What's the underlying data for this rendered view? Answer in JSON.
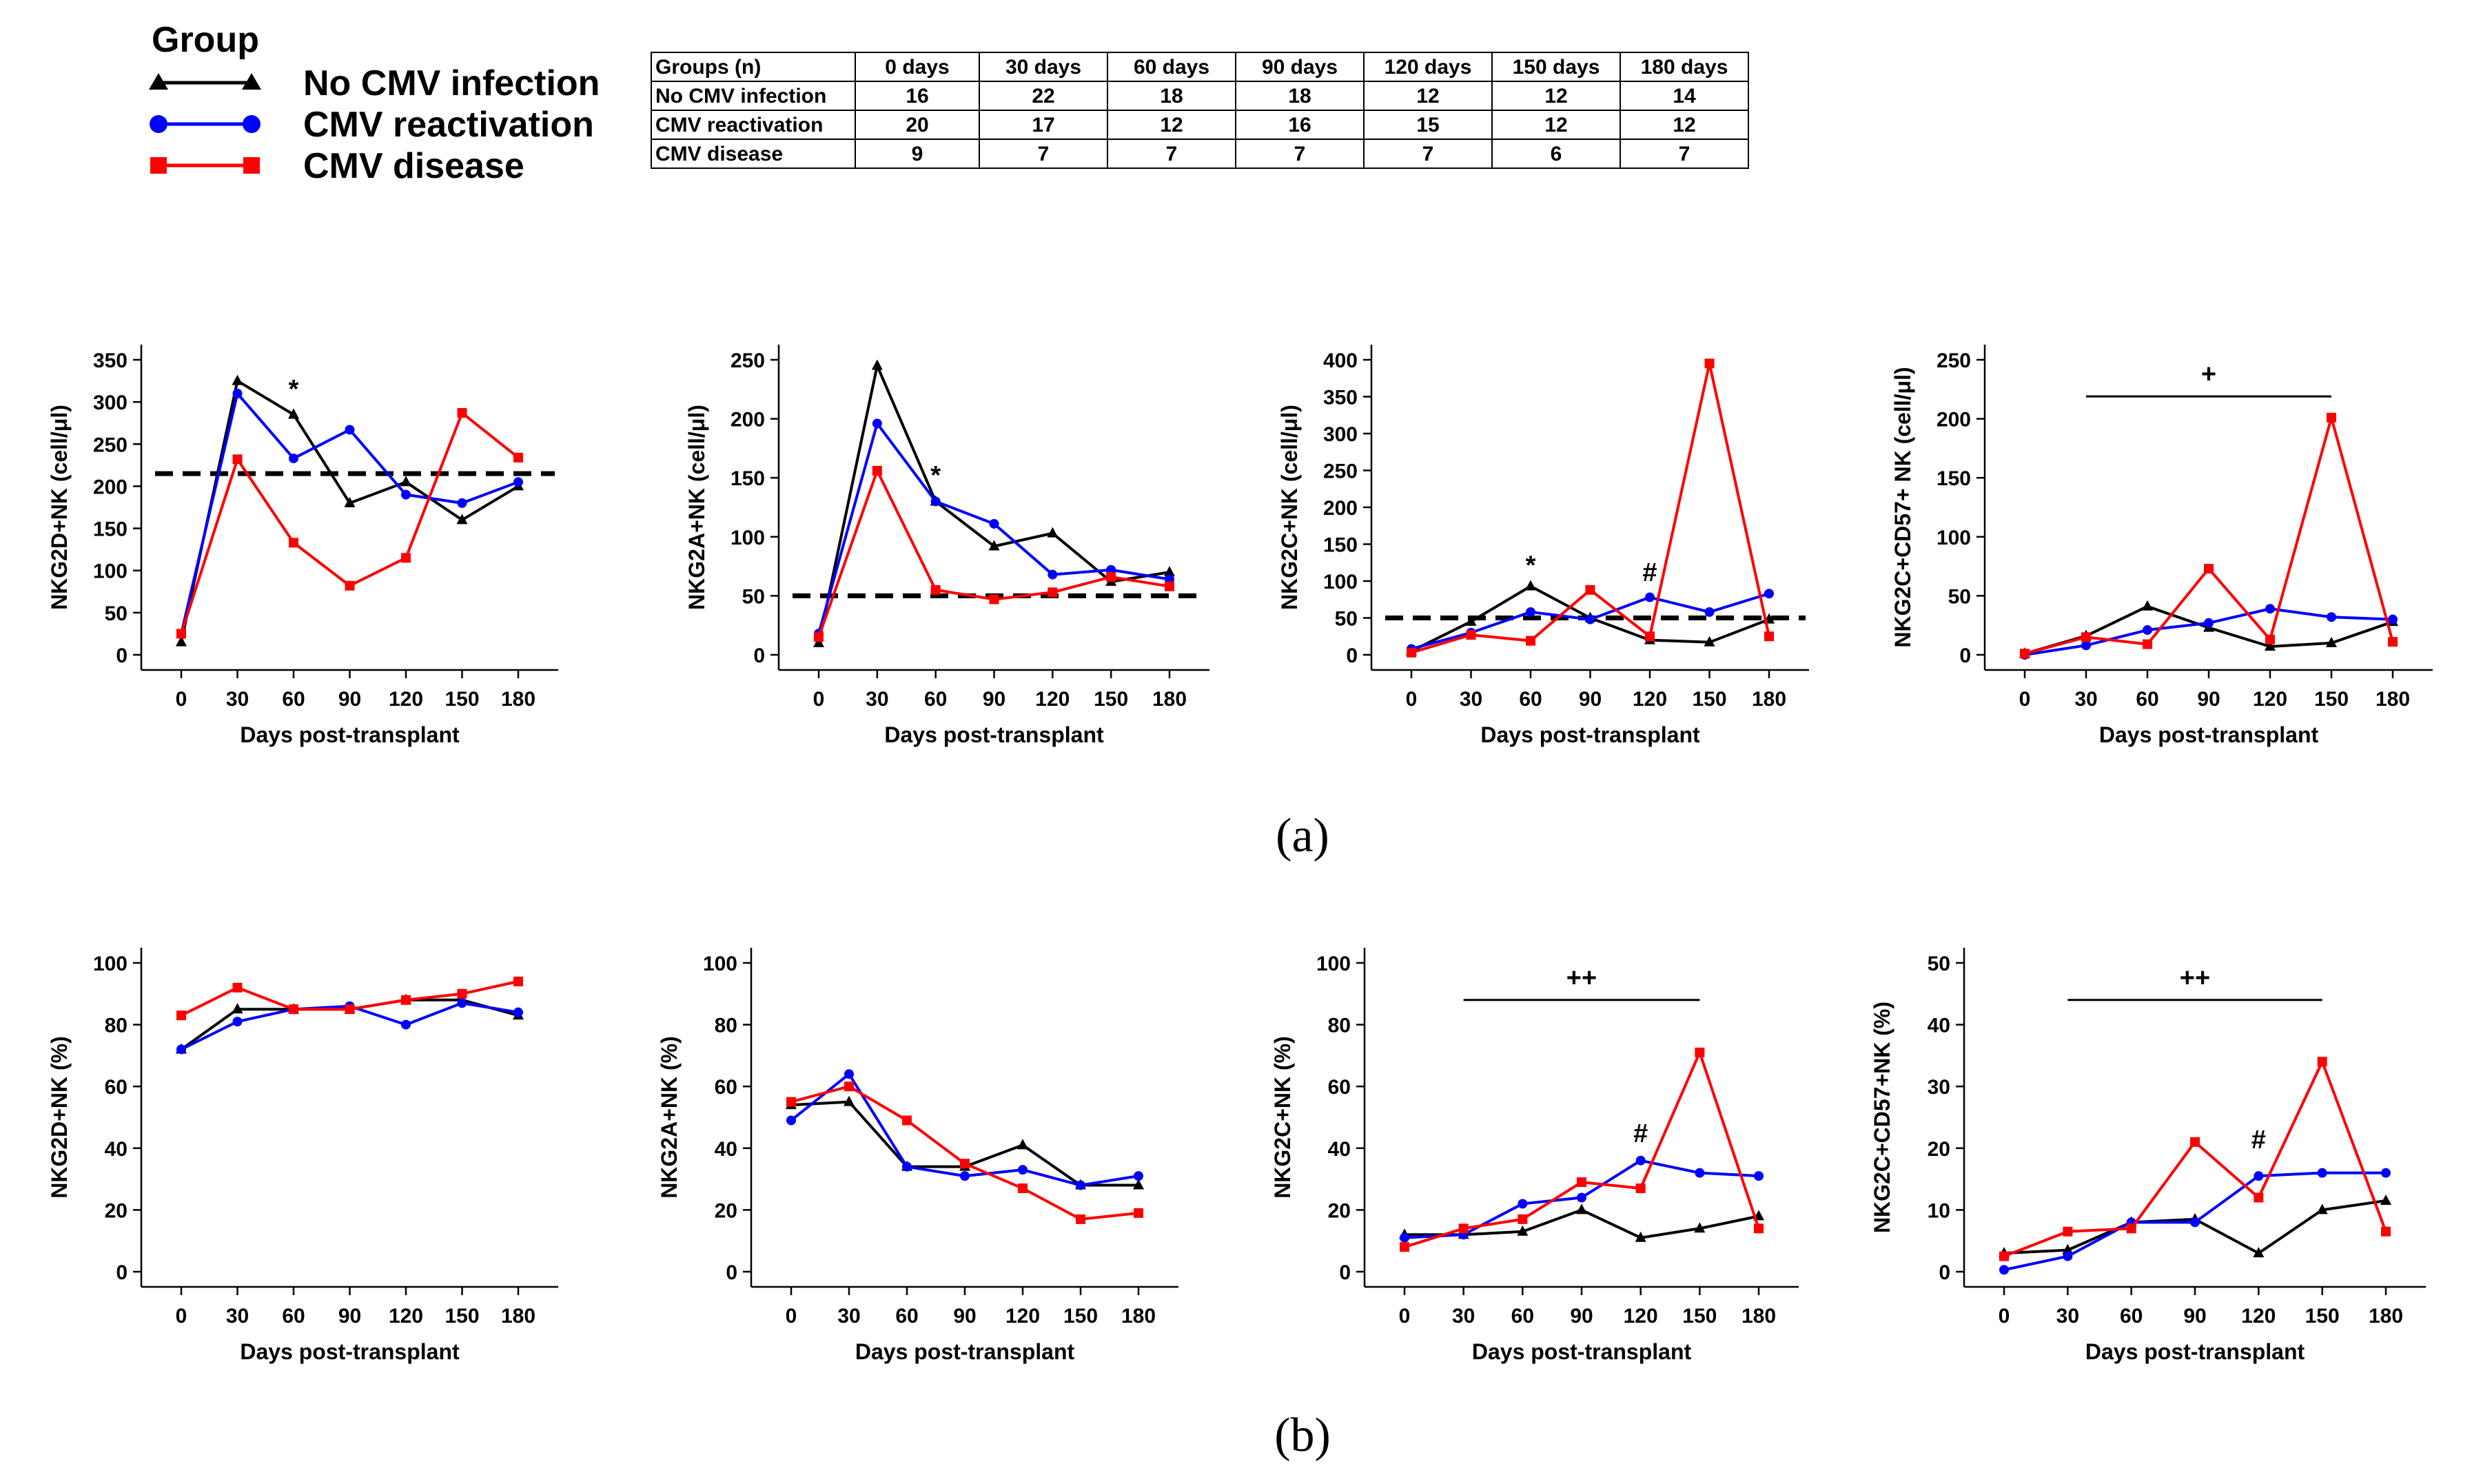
{
  "legend": {
    "title": "Group",
    "items": [
      {
        "label": "No CMV infection",
        "color": "#000000",
        "marker": "triangle"
      },
      {
        "label": "CMV reactivation",
        "color": "#0000ff",
        "marker": "circle"
      },
      {
        "label": "CMV disease",
        "color": "#ff0000",
        "marker": "square"
      }
    ]
  },
  "table": {
    "headers": [
      "Groups (n)",
      "0 days",
      "30 days",
      "60 days",
      "90 days",
      "120 days",
      "150 days",
      "180 days"
    ],
    "rows": [
      [
        "No CMV infection",
        "16",
        "22",
        "18",
        "18",
        "12",
        "12",
        "14"
      ],
      [
        "CMV reactivation",
        "20",
        "17",
        "12",
        "16",
        "15",
        "12",
        "12"
      ],
      [
        "CMV disease",
        "9",
        "7",
        "7",
        "7",
        "7",
        "6",
        "7"
      ]
    ]
  },
  "panel_labels": {
    "a": "(a)",
    "b": "(b)"
  },
  "chart_data": [
    {
      "type": "line",
      "id": "a1",
      "ylabel": "NKG2D+NK (cell/μl)",
      "xlabel": "Days post-transplant",
      "x": [
        0,
        30,
        60,
        90,
        120,
        150,
        180
      ],
      "xticks": [
        0,
        30,
        60,
        90,
        120,
        150,
        180
      ],
      "ylim": [
        0,
        350
      ],
      "yticks": [
        0,
        50,
        100,
        150,
        200,
        250,
        300,
        350
      ],
      "threshold": 215,
      "series": [
        {
          "name": "No CMV infection",
          "values": [
            15,
            325,
            285,
            180,
            205,
            160,
            200
          ]
        },
        {
          "name": "CMV reactivation",
          "values": [
            25,
            310,
            233,
            267,
            190,
            180,
            205
          ]
        },
        {
          "name": "CMV disease",
          "values": [
            25,
            232,
            133,
            82,
            115,
            287,
            234
          ]
        }
      ],
      "annotations": [
        {
          "text": "*",
          "x": 60,
          "y": 305
        }
      ]
    },
    {
      "type": "line",
      "id": "a2",
      "ylabel": "NKG2A+NK (cell/μl)",
      "xlabel": "Days post-transplant",
      "x": [
        0,
        30,
        60,
        90,
        120,
        150,
        180
      ],
      "xticks": [
        0,
        30,
        60,
        90,
        120,
        150,
        180
      ],
      "ylim": [
        0,
        250
      ],
      "yticks": [
        0,
        50,
        100,
        150,
        200,
        250
      ],
      "threshold": 50,
      "series": [
        {
          "name": "No CMV infection",
          "values": [
            10,
            245,
            130,
            92,
            103,
            62,
            70
          ]
        },
        {
          "name": "CMV reactivation",
          "values": [
            18,
            196,
            130,
            111,
            68,
            72,
            64
          ]
        },
        {
          "name": "CMV disease",
          "values": [
            15,
            156,
            55,
            47,
            53,
            66,
            58
          ]
        }
      ],
      "annotations": [
        {
          "text": "*",
          "x": 60,
          "y": 145
        }
      ]
    },
    {
      "type": "line",
      "id": "a3",
      "ylabel": "NKG2C+NK (cell/μl)",
      "xlabel": "Days post-transplant",
      "x": [
        0,
        30,
        60,
        90,
        120,
        150,
        180
      ],
      "xticks": [
        0,
        30,
        60,
        90,
        120,
        150,
        180
      ],
      "ylim": [
        0,
        400
      ],
      "yticks": [
        0,
        50,
        100,
        150,
        200,
        250,
        300,
        350,
        400
      ],
      "threshold": 50,
      "series": [
        {
          "name": "No CMV infection",
          "values": [
            5,
            45,
            93,
            50,
            20,
            17,
            48
          ]
        },
        {
          "name": "CMV reactivation",
          "values": [
            8,
            30,
            58,
            48,
            78,
            58,
            83
          ]
        },
        {
          "name": "CMV disease",
          "values": [
            3,
            27,
            19,
            88,
            25,
            395,
            25
          ]
        }
      ],
      "annotations": [
        {
          "text": "*",
          "x": 60,
          "y": 110
        },
        {
          "text": "#",
          "x": 120,
          "y": 100
        }
      ]
    },
    {
      "type": "line",
      "id": "a4",
      "ylabel": "NKG2C+CD57+ NK (cell/μl)",
      "xlabel": "Days post-transplant",
      "x": [
        0,
        30,
        60,
        90,
        120,
        150,
        180
      ],
      "xticks": [
        0,
        30,
        60,
        90,
        120,
        150,
        180
      ],
      "ylim": [
        0,
        250
      ],
      "yticks": [
        0,
        50,
        100,
        150,
        200,
        250
      ],
      "bracket": {
        "x1": 30,
        "x2": 150,
        "y": 219,
        "text": "+"
      },
      "series": [
        {
          "name": "No CMV infection",
          "values": [
            1,
            16,
            41,
            23,
            7,
            10,
            28
          ]
        },
        {
          "name": "CMV reactivation",
          "values": [
            0,
            8,
            21,
            27,
            39,
            32,
            30
          ]
        },
        {
          "name": "CMV disease",
          "values": [
            1,
            15,
            9,
            73,
            13,
            201,
            11
          ]
        }
      ]
    },
    {
      "type": "line",
      "id": "b1",
      "ylabel": "NKG2D+NK (%)",
      "xlabel": "Days post-transplant",
      "x": [
        0,
        30,
        60,
        90,
        120,
        150,
        180
      ],
      "xticks": [
        0,
        30,
        60,
        90,
        120,
        150,
        180
      ],
      "ylim": [
        0,
        100
      ],
      "yticks": [
        0,
        20,
        40,
        60,
        80,
        100
      ],
      "series": [
        {
          "name": "No CMV infection",
          "values": [
            72,
            85,
            85,
            85,
            88,
            88,
            83
          ]
        },
        {
          "name": "CMV reactivation",
          "values": [
            72,
            81,
            85,
            86,
            80,
            87,
            84
          ]
        },
        {
          "name": "CMV disease",
          "values": [
            83,
            92,
            85,
            85,
            88,
            90,
            94
          ]
        }
      ]
    },
    {
      "type": "line",
      "id": "b2",
      "ylabel": "NKG2A+NK (%)",
      "xlabel": "Days post-transplant",
      "x": [
        0,
        30,
        60,
        90,
        120,
        150,
        180
      ],
      "xticks": [
        0,
        30,
        60,
        90,
        120,
        150,
        180
      ],
      "ylim": [
        0,
        100
      ],
      "yticks": [
        0,
        20,
        40,
        60,
        80,
        100
      ],
      "series": [
        {
          "name": "No CMV infection",
          "values": [
            54,
            55,
            34,
            34,
            41,
            28,
            28
          ]
        },
        {
          "name": "CMV reactivation",
          "values": [
            49,
            64,
            34,
            31,
            33,
            28,
            31
          ]
        },
        {
          "name": "CMV disease",
          "values": [
            55,
            60,
            49,
            35,
            27,
            17,
            19
          ]
        }
      ]
    },
    {
      "type": "line",
      "id": "b3",
      "ylabel": "NKG2C+NK (%)",
      "xlabel": "Days post-transplant",
      "x": [
        0,
        30,
        60,
        90,
        120,
        150,
        180
      ],
      "xticks": [
        0,
        30,
        60,
        90,
        120,
        150,
        180
      ],
      "ylim": [
        0,
        100
      ],
      "yticks": [
        0,
        20,
        40,
        60,
        80,
        100
      ],
      "bracket": {
        "x1": 30,
        "x2": 150,
        "y": 88,
        "text": "++"
      },
      "series": [
        {
          "name": "No CMV infection",
          "values": [
            12,
            12,
            13,
            20,
            11,
            14,
            18
          ]
        },
        {
          "name": "CMV reactivation",
          "values": [
            11,
            12,
            22,
            24,
            36,
            32,
            31
          ]
        },
        {
          "name": "CMV disease",
          "values": [
            8,
            14,
            17,
            29,
            27,
            71,
            14
          ]
        }
      ],
      "annotations": [
        {
          "text": "#",
          "x": 120,
          "y": 42
        }
      ]
    },
    {
      "type": "line",
      "id": "b4",
      "ylabel": "NKG2C+CD57+NK (%)",
      "xlabel": "Days post-transplant",
      "x": [
        0,
        30,
        60,
        90,
        120,
        150,
        180
      ],
      "xticks": [
        0,
        30,
        60,
        90,
        120,
        150,
        180
      ],
      "ylim": [
        0,
        50
      ],
      "yticks": [
        0,
        10,
        20,
        30,
        40,
        50
      ],
      "bracket": {
        "x1": 30,
        "x2": 150,
        "y": 44,
        "text": "++"
      },
      "series": [
        {
          "name": "No CMV infection",
          "values": [
            3,
            3.5,
            8,
            8.5,
            3,
            10,
            11.5
          ]
        },
        {
          "name": "CMV reactivation",
          "values": [
            0.3,
            2.5,
            8,
            8,
            15.5,
            16,
            16
          ]
        },
        {
          "name": "CMV disease",
          "values": [
            2.5,
            6.5,
            7,
            21,
            12,
            34,
            6.5
          ]
        }
      ],
      "annotations": [
        {
          "text": "#",
          "x": 120,
          "y": 20
        }
      ]
    }
  ]
}
